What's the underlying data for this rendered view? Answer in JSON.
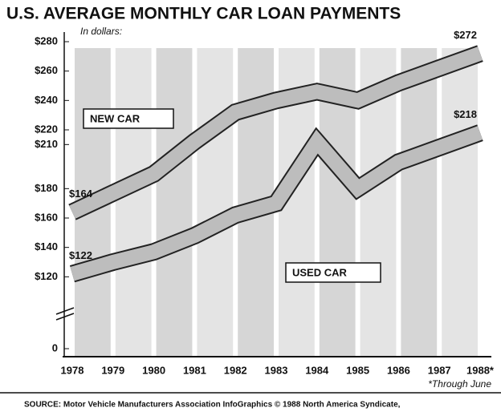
{
  "chart_data": {
    "type": "line",
    "title": "U.S. AVERAGE MONTHLY CAR LOAN PAYMENTS",
    "subtitle": "In dollars:",
    "categories": [
      "1978",
      "1979",
      "1980",
      "1981",
      "1982",
      "1983",
      "1984",
      "1985",
      "1986",
      "1987",
      "1988*"
    ],
    "series": [
      {
        "name": "NEW CAR",
        "color": "#bdbdbd",
        "values": [
          164,
          177,
          190,
          212,
          232,
          240,
          246,
          240,
          252,
          262,
          272
        ],
        "value_labels": [
          "$164",
          null,
          null,
          null,
          null,
          null,
          null,
          null,
          null,
          null,
          "$272"
        ]
      },
      {
        "name": "USED CAR",
        "color": "#bdbdbd",
        "values": [
          122,
          130,
          137,
          148,
          162,
          170,
          212,
          180,
          198,
          208,
          218
        ],
        "value_labels": [
          "$122",
          null,
          null,
          null,
          null,
          null,
          null,
          null,
          null,
          null,
          "$218"
        ]
      }
    ],
    "ylim": [
      0,
      280
    ],
    "axis_break": [
      0,
      100
    ],
    "yticks": [
      {
        "value": 0,
        "label": "0"
      },
      {
        "value": 120,
        "label": "$120"
      },
      {
        "value": 140,
        "label": "$140"
      },
      {
        "value": 160,
        "label": "$160"
      },
      {
        "value": 180,
        "label": "$180"
      },
      {
        "value": 210,
        "label": "$210"
      },
      {
        "value": 220,
        "label": "$220"
      },
      {
        "value": 240,
        "label": "$240"
      },
      {
        "value": 260,
        "label": "$260"
      },
      {
        "value": 280,
        "label": "$280"
      }
    ],
    "footnote": "*Through June",
    "source": "SOURCE: Motor Vehicle Manufacturers Association   InfoGraphics  © 1988 North America Syndicate,"
  }
}
